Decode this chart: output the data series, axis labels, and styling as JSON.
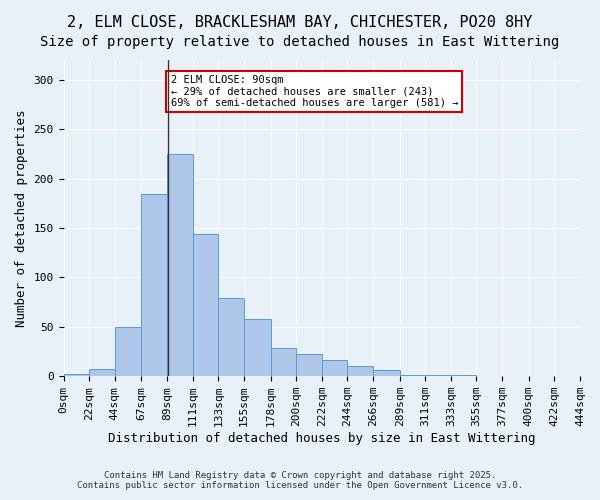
{
  "title_line1": "2, ELM CLOSE, BRACKLESHAM BAY, CHICHESTER, PO20 8HY",
  "title_line2": "Size of property relative to detached houses in East Wittering",
  "xlabel": "Distribution of detached houses by size in East Wittering",
  "ylabel": "Number of detached properties",
  "bin_labels": [
    "0sqm",
    "22sqm",
    "44sqm",
    "67sqm",
    "89sqm",
    "111sqm",
    "133sqm",
    "155sqm",
    "178sqm",
    "200sqm",
    "222sqm",
    "244sqm",
    "266sqm",
    "289sqm",
    "311sqm",
    "333sqm",
    "355sqm",
    "377sqm",
    "400sqm",
    "422sqm",
    "444sqm"
  ],
  "bar_values": [
    2,
    7,
    50,
    184,
    225,
    144,
    79,
    58,
    29,
    22,
    16,
    10,
    6,
    1,
    1,
    1,
    0,
    0,
    0,
    0
  ],
  "bin_edges": [
    0,
    22,
    44,
    67,
    89,
    111,
    133,
    155,
    178,
    200,
    222,
    244,
    266,
    289,
    311,
    333,
    355,
    377,
    400,
    422,
    444
  ],
  "bar_color": "#aec6e8",
  "bar_edge_color": "#5b9bd5",
  "property_value": 90,
  "annotation_text": "2 ELM CLOSE: 90sqm\n← 29% of detached houses are smaller (243)\n69% of semi-detached houses are larger (581) →",
  "annotation_box_color": "#ffffff",
  "annotation_box_edge": "#cc0000",
  "ylim": [
    0,
    320
  ],
  "yticks": [
    0,
    50,
    100,
    150,
    200,
    250,
    300
  ],
  "background_color": "#e8f0f8",
  "grid_color": "#ffffff",
  "footer_line1": "Contains HM Land Registry data © Crown copyright and database right 2025.",
  "footer_line2": "Contains public sector information licensed under the Open Government Licence v3.0.",
  "title_fontsize": 11,
  "subtitle_fontsize": 10,
  "axis_fontsize": 9,
  "tick_fontsize": 8
}
